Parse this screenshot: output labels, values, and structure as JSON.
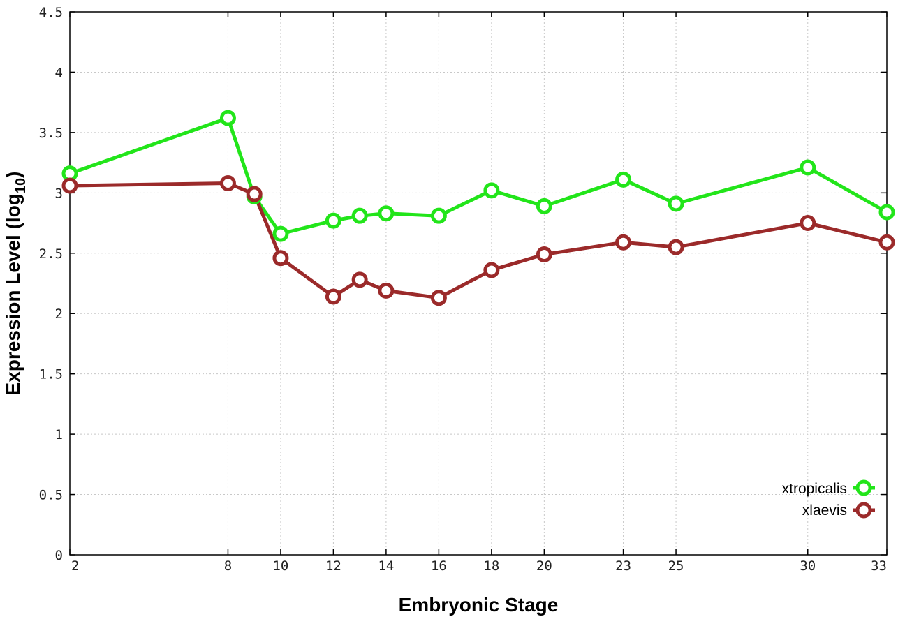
{
  "chart_data": {
    "type": "line",
    "xlabel": "Embryonic Stage",
    "ylabel_main": "Expression Level (log",
    "ylabel_sub": "10",
    "ylabel_close": ")",
    "xlim": [
      2,
      33
    ],
    "ylim": [
      0,
      4.5
    ],
    "x": [
      2,
      8,
      9,
      10,
      12,
      13,
      14,
      16,
      18,
      20,
      23,
      25,
      30,
      33
    ],
    "x_ticks": [
      2,
      8,
      10,
      12,
      14,
      16,
      18,
      20,
      23,
      25,
      30,
      33
    ],
    "y_ticks": [
      0,
      0.5,
      1,
      1.5,
      2,
      2.5,
      3,
      3.5,
      4,
      4.5
    ],
    "y_tick_labels": [
      "0",
      "0.5",
      "1",
      "1.5",
      "2",
      "2.5",
      "3",
      "3.5",
      "4",
      "4.5"
    ],
    "grid": true,
    "legend_position": "bottom-right",
    "series": [
      {
        "name": "xtropicalis",
        "color": "#22e51a",
        "values": [
          3.16,
          3.62,
          2.97,
          2.66,
          2.77,
          2.81,
          2.83,
          2.81,
          3.02,
          2.89,
          3.11,
          2.91,
          3.21,
          2.84
        ]
      },
      {
        "name": "xlaevis",
        "color": "#9b2a2a",
        "values": [
          3.06,
          3.08,
          2.99,
          2.46,
          2.14,
          2.28,
          2.19,
          2.13,
          2.36,
          2.49,
          2.59,
          2.55,
          2.75,
          2.59
        ]
      }
    ]
  }
}
